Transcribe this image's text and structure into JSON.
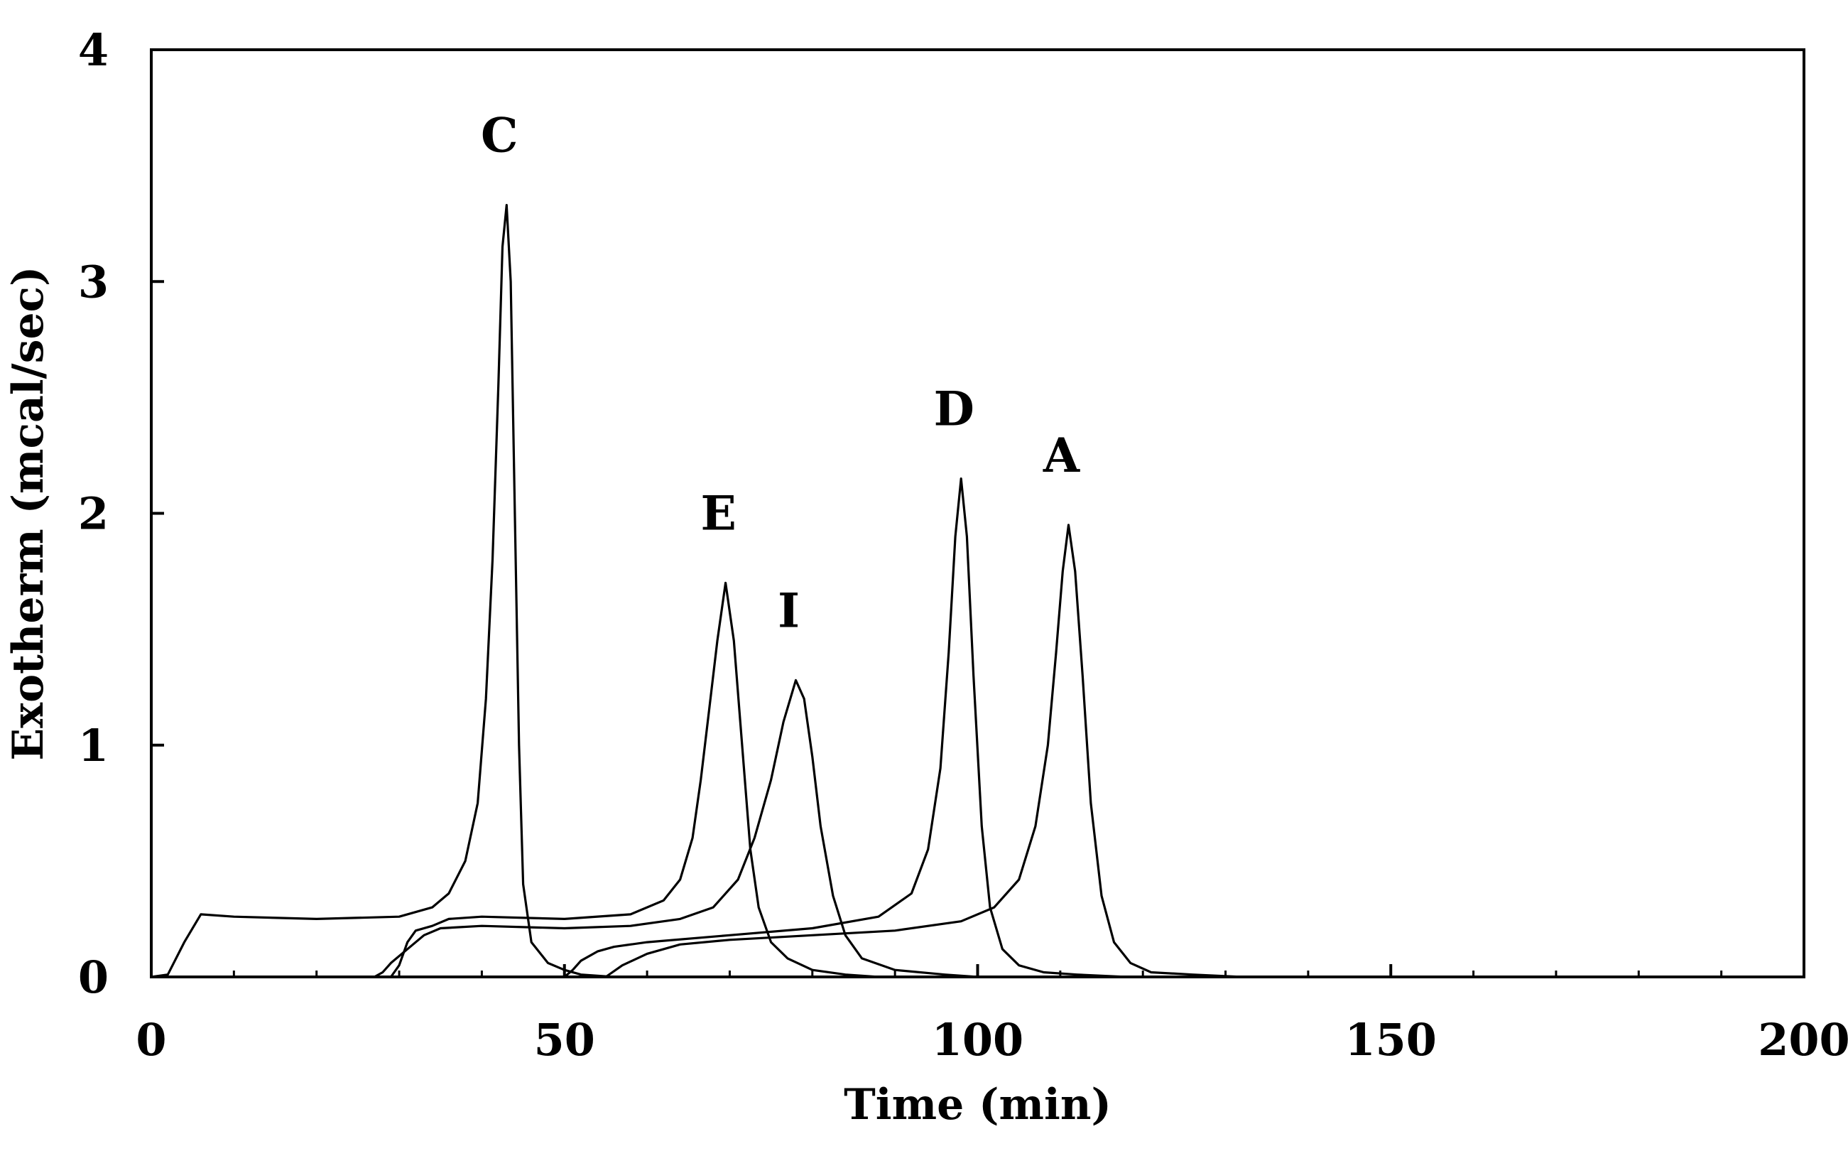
{
  "chart_data": {
    "type": "line",
    "title": "",
    "xlabel": "Time (min)",
    "ylabel": "Exotherm (mcal/sec)",
    "xlim": [
      0,
      200
    ],
    "ylim": [
      0,
      4
    ],
    "xticks": [
      0,
      50,
      100,
      150,
      200
    ],
    "yticks": [
      0,
      1,
      2,
      3,
      4
    ],
    "grid": false,
    "legend": "none",
    "line_color": "#000000",
    "series": [
      {
        "name": "C",
        "peak_label": "C",
        "peak_time": 43,
        "peak_value": 3.33,
        "points": [
          [
            0,
            0
          ],
          [
            2,
            0.01
          ],
          [
            4,
            0.15
          ],
          [
            6,
            0.27
          ],
          [
            10,
            0.26
          ],
          [
            20,
            0.25
          ],
          [
            30,
            0.26
          ],
          [
            34,
            0.3
          ],
          [
            36,
            0.36
          ],
          [
            38,
            0.5
          ],
          [
            39.5,
            0.75
          ],
          [
            40.5,
            1.2
          ],
          [
            41.3,
            1.8
          ],
          [
            42,
            2.55
          ],
          [
            42.5,
            3.15
          ],
          [
            43,
            3.33
          ],
          [
            43.5,
            3.0
          ],
          [
            44,
            2.0
          ],
          [
            44.5,
            1.0
          ],
          [
            45,
            0.4
          ],
          [
            46,
            0.15
          ],
          [
            48,
            0.06
          ],
          [
            50,
            0.03
          ],
          [
            52,
            0.01
          ],
          [
            56,
            0.0
          ]
        ]
      },
      {
        "name": "E",
        "peak_label": "E",
        "peak_time": 69.5,
        "peak_value": 1.7,
        "points": [
          [
            29,
            0
          ],
          [
            30,
            0.05
          ],
          [
            31,
            0.15
          ],
          [
            32,
            0.2
          ],
          [
            34,
            0.22
          ],
          [
            36,
            0.25
          ],
          [
            40,
            0.26
          ],
          [
            50,
            0.25
          ],
          [
            58,
            0.27
          ],
          [
            62,
            0.33
          ],
          [
            64,
            0.42
          ],
          [
            65.5,
            0.6
          ],
          [
            66.5,
            0.85
          ],
          [
            67.5,
            1.15
          ],
          [
            68.5,
            1.45
          ],
          [
            69.5,
            1.7
          ],
          [
            70.5,
            1.45
          ],
          [
            71.5,
            1.0
          ],
          [
            72.5,
            0.55
          ],
          [
            73.5,
            0.3
          ],
          [
            75,
            0.15
          ],
          [
            77,
            0.08
          ],
          [
            80,
            0.03
          ],
          [
            84,
            0.01
          ],
          [
            88,
            0.0
          ]
        ]
      },
      {
        "name": "I",
        "peak_label": "I",
        "peak_time": 78,
        "peak_value": 1.28,
        "points": [
          [
            27,
            0
          ],
          [
            28,
            0.02
          ],
          [
            29,
            0.06
          ],
          [
            31,
            0.12
          ],
          [
            33,
            0.18
          ],
          [
            35,
            0.21
          ],
          [
            40,
            0.22
          ],
          [
            50,
            0.21
          ],
          [
            58,
            0.22
          ],
          [
            64,
            0.25
          ],
          [
            68,
            0.3
          ],
          [
            71,
            0.42
          ],
          [
            73,
            0.6
          ],
          [
            75,
            0.85
          ],
          [
            76.5,
            1.1
          ],
          [
            78,
            1.28
          ],
          [
            79,
            1.2
          ],
          [
            80,
            0.95
          ],
          [
            81,
            0.65
          ],
          [
            82.5,
            0.35
          ],
          [
            84,
            0.18
          ],
          [
            86,
            0.08
          ],
          [
            90,
            0.03
          ],
          [
            96,
            0.01
          ],
          [
            100,
            0.0
          ]
        ]
      },
      {
        "name": "D",
        "peak_label": "D",
        "peak_time": 98,
        "peak_value": 2.15,
        "points": [
          [
            50,
            0
          ],
          [
            51,
            0.03
          ],
          [
            52,
            0.07
          ],
          [
            54,
            0.11
          ],
          [
            56,
            0.13
          ],
          [
            60,
            0.15
          ],
          [
            70,
            0.18
          ],
          [
            80,
            0.21
          ],
          [
            88,
            0.26
          ],
          [
            92,
            0.36
          ],
          [
            94,
            0.55
          ],
          [
            95.5,
            0.9
          ],
          [
            96.5,
            1.4
          ],
          [
            97.3,
            1.9
          ],
          [
            98,
            2.15
          ],
          [
            98.7,
            1.9
          ],
          [
            99.5,
            1.3
          ],
          [
            100.5,
            0.65
          ],
          [
            101.5,
            0.3
          ],
          [
            103,
            0.12
          ],
          [
            105,
            0.05
          ],
          [
            108,
            0.02
          ],
          [
            112,
            0.01
          ],
          [
            118,
            0.0
          ]
        ]
      },
      {
        "name": "A",
        "peak_label": "A",
        "peak_time": 111,
        "peak_value": 1.95,
        "points": [
          [
            55,
            0
          ],
          [
            57,
            0.05
          ],
          [
            60,
            0.1
          ],
          [
            64,
            0.14
          ],
          [
            70,
            0.16
          ],
          [
            80,
            0.18
          ],
          [
            90,
            0.2
          ],
          [
            98,
            0.24
          ],
          [
            102,
            0.3
          ],
          [
            105,
            0.42
          ],
          [
            107,
            0.65
          ],
          [
            108.5,
            1.0
          ],
          [
            109.5,
            1.4
          ],
          [
            110.3,
            1.75
          ],
          [
            111,
            1.95
          ],
          [
            111.8,
            1.75
          ],
          [
            112.7,
            1.3
          ],
          [
            113.7,
            0.75
          ],
          [
            115,
            0.35
          ],
          [
            116.5,
            0.15
          ],
          [
            118.5,
            0.06
          ],
          [
            121,
            0.02
          ],
          [
            126,
            0.01
          ],
          [
            132,
            0.0
          ]
        ]
      }
    ]
  }
}
